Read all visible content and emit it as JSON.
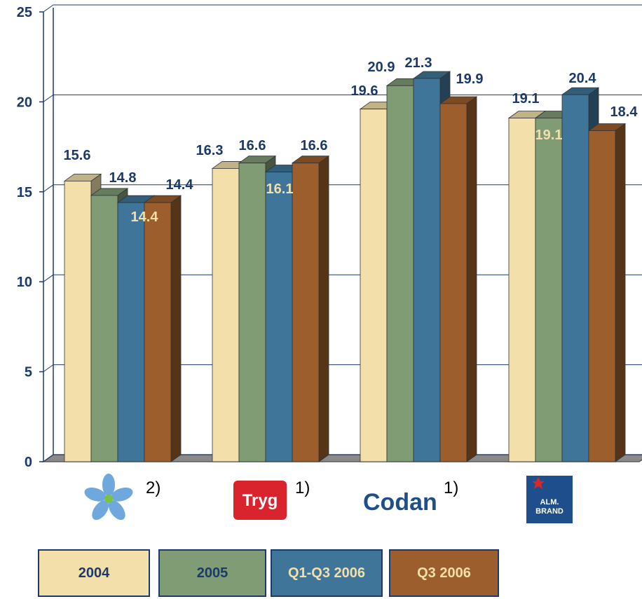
{
  "chart_data": {
    "type": "bar",
    "categories": [
      "",
      "Tryg",
      "Codan",
      "ALM. BRAND"
    ],
    "category_notes": [
      "2)",
      "1)",
      "1)",
      ""
    ],
    "series": [
      {
        "name": "2004",
        "values": [
          15.6,
          16.3,
          19.6,
          19.1
        ],
        "color": "#f2dfaa"
      },
      {
        "name": "2005",
        "values": [
          14.8,
          16.6,
          20.9,
          19.1
        ],
        "color": "#7f9c74"
      },
      {
        "name": "Q1-Q3 2006",
        "values": [
          14.4,
          16.1,
          21.3,
          20.4
        ],
        "color": "#3f7599"
      },
      {
        "name": "Q3 2006",
        "values": [
          14.4,
          16.6,
          19.9,
          18.4
        ],
        "color": "#9b5e2c"
      }
    ],
    "data_labels": [
      [
        "15.6",
        "14.8",
        "14.4",
        "14.4"
      ],
      [
        "16.3",
        "16.6",
        "16.1",
        "16.6"
      ],
      [
        "19.6",
        "20.9",
        "21.3",
        "19.9"
      ],
      [
        "19.1",
        "19.1",
        "20.4",
        "18.4"
      ]
    ],
    "yticks": [
      "0",
      "5",
      "10",
      "15",
      "20",
      "25"
    ],
    "ylim": [
      0,
      25
    ],
    "grid": true,
    "legend": "bottom"
  },
  "logos": {
    "tryg": "Tryg",
    "codan": "Codan",
    "almbrand_line1": "ALM.",
    "almbrand_line2": "BRAND"
  },
  "colors": {
    "label": "#1b3a6b",
    "label_light": "#f2dfaa",
    "grid": "#1b3a6b",
    "floor": "#5a5a5a"
  }
}
